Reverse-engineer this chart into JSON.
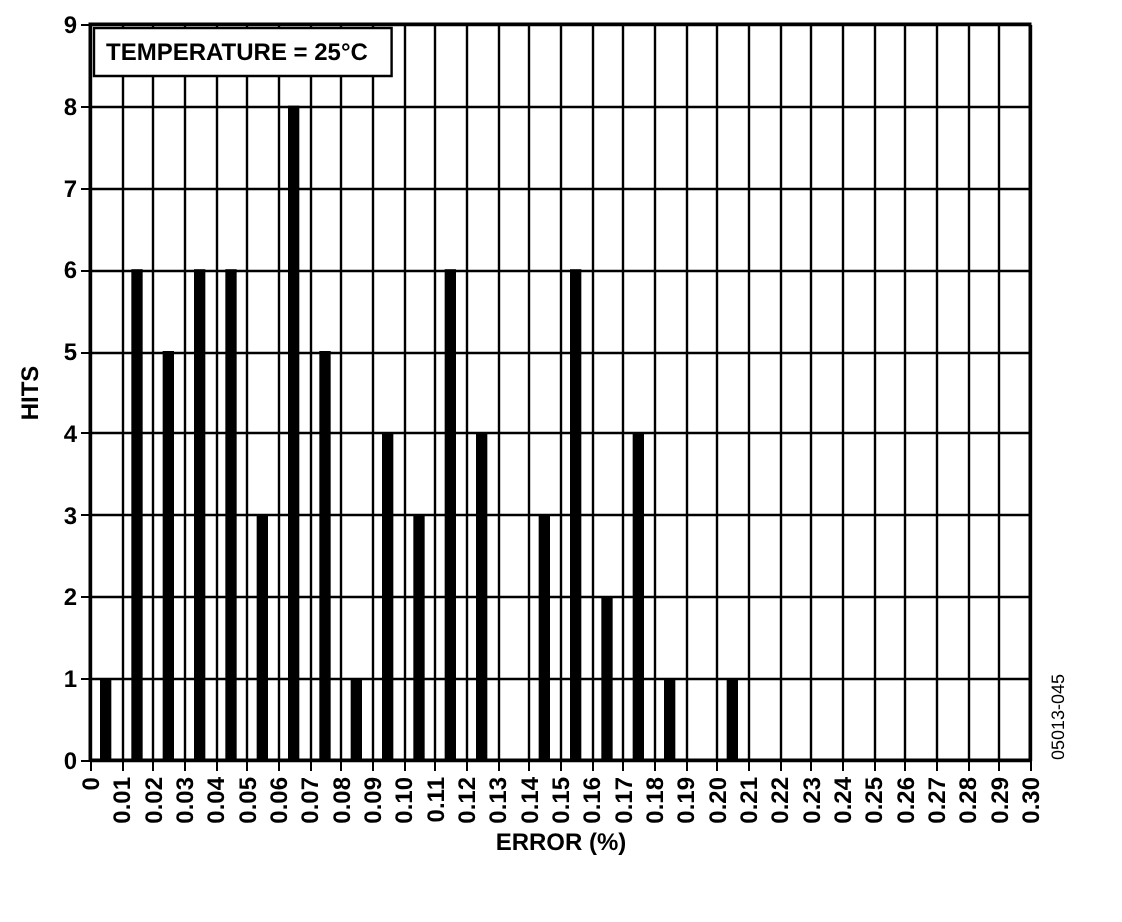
{
  "chart_data": {
    "type": "histogram",
    "xlabel": "ERROR (%)",
    "ylabel": "HITS",
    "annotations": [
      "TEMPERATURE = 25°C",
      "05013-045"
    ],
    "bins": [
      0,
      0.01,
      0.02,
      0.03,
      0.04,
      0.05,
      0.06,
      0.07,
      0.08,
      0.09,
      0.1,
      0.11,
      0.12,
      0.13,
      0.14,
      0.15,
      0.16,
      0.17,
      0.18,
      0.19,
      0.2,
      0.21,
      0.22,
      0.23,
      0.24,
      0.25,
      0.26,
      0.27,
      0.28,
      0.29,
      0.3
    ],
    "values": [
      1,
      6,
      5,
      6,
      6,
      3,
      8,
      5,
      1,
      4,
      3,
      6,
      4,
      0,
      3,
      6,
      2,
      4,
      1,
      0,
      1,
      0,
      0,
      0,
      0,
      0,
      0,
      0,
      0,
      0
    ],
    "color": "#000000",
    "xlim": [
      0,
      0.3
    ],
    "xticks": [
      0,
      0.01,
      0.02,
      0.03,
      0.04,
      0.05,
      0.06,
      0.07,
      0.08,
      0.09,
      {
        "value": 0.1,
        "label": "0.10"
      },
      0.11,
      0.12,
      0.13,
      0.14,
      0.15,
      0.16,
      0.17,
      0.18,
      0.19,
      {
        "value": 0.2,
        "label": "0.20"
      },
      0.21,
      0.22,
      0.23,
      0.24,
      0.25,
      0.26,
      0.27,
      0.28,
      0.29,
      {
        "value": 0.3,
        "label": "0.30"
      }
    ],
    "ylim": [
      0,
      9
    ],
    "yticks": [
      0,
      1,
      2,
      3,
      4,
      5,
      6,
      7,
      8,
      9
    ],
    "grid": true
  }
}
